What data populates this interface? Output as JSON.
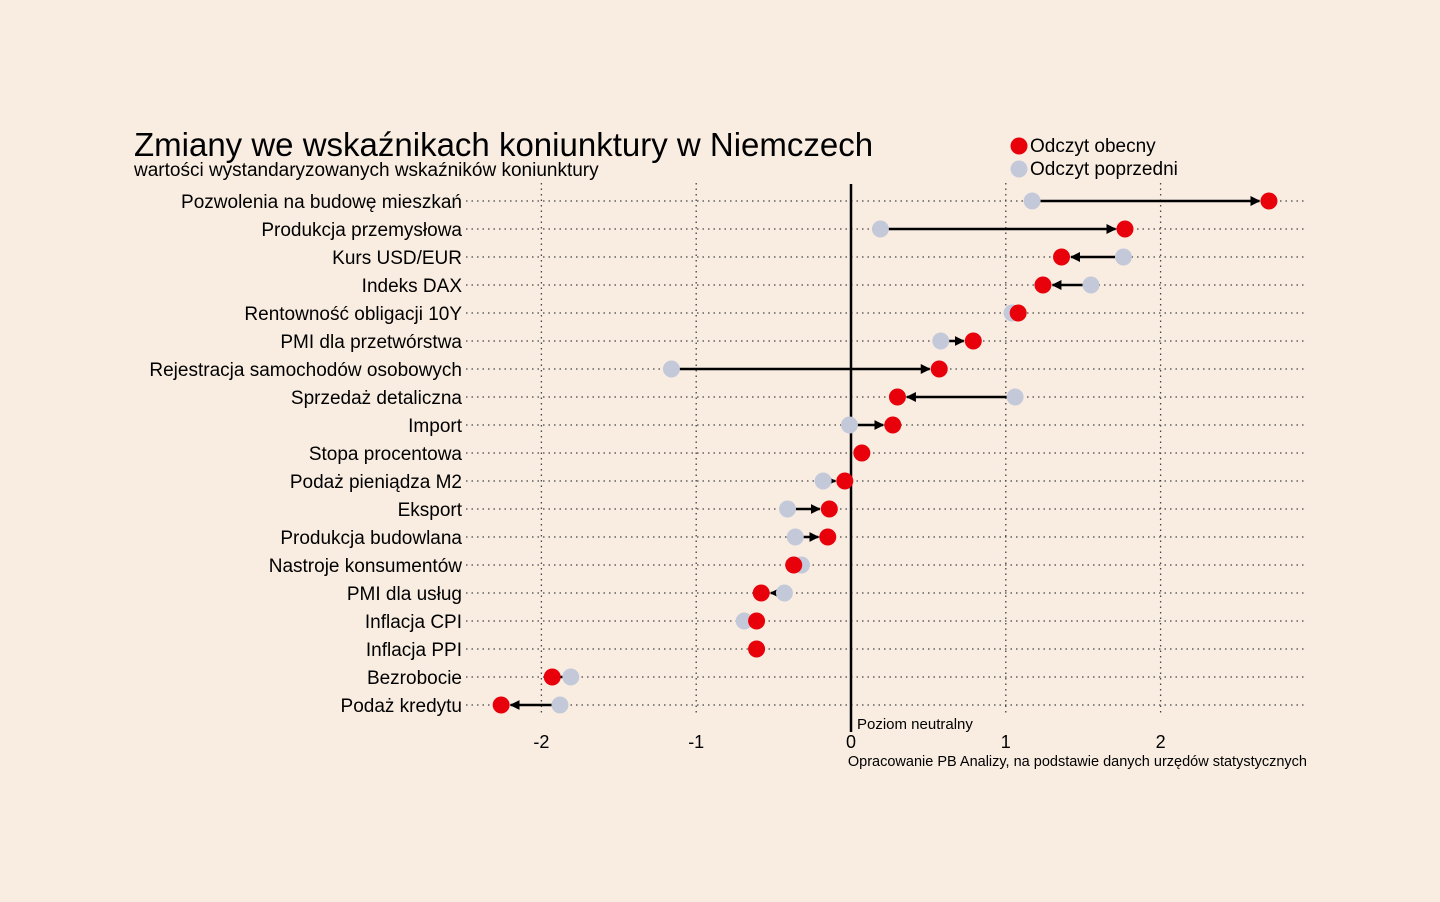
{
  "chart_data": {
    "type": "dumbbell",
    "title": "Zmiany we wskaźnikach koniunktury w Niemczech",
    "subtitle": "wartości wystandaryzowanych wskaźników koniunktury",
    "source": "Opracowanie PB Analizy, na podstawie danych urzędów statystycznych",
    "neutral_label": "Poziom neutralny",
    "legend": [
      {
        "name": "Odczyt obecny",
        "color": "#e8000b"
      },
      {
        "name": "Odczyt poprzedni",
        "color": "#c4c9d9"
      }
    ],
    "legend_position": "top-right",
    "x_ticks": [
      -2,
      -1,
      0,
      1,
      2
    ],
    "x_tick_labels": [
      "-2",
      "-1",
      "0",
      "1",
      "2"
    ],
    "xlim": [
      -2.5,
      3.0
    ],
    "grid": "dotted",
    "categories": [
      "Pozwolenia na budowę mieszkań",
      "Produkcja przemysłowa",
      "Kurs USD/EUR",
      "Indeks DAX",
      "Rentowność obligacji 10Y",
      "PMI dla przetwórstwa",
      "Rejestracja samochodów osobowych",
      "Sprzedaż detaliczna",
      "Import",
      "Stopa procentowa",
      "Podaż pieniądza M2",
      "Eksport",
      "Produkcja budowlana",
      "Nastroje konsumentów",
      "PMI dla usług",
      "Inflacja CPI",
      "Inflacja PPI",
      "Bezrobocie",
      "Podaż kredytu"
    ],
    "series": [
      {
        "name": "Odczyt obecny",
        "values": [
          2.7,
          1.77,
          1.36,
          1.24,
          1.08,
          0.79,
          0.57,
          0.3,
          0.27,
          0.07,
          -0.04,
          -0.14,
          -0.15,
          -0.37,
          -0.58,
          -0.61,
          -0.61,
          -1.93,
          -2.26
        ]
      },
      {
        "name": "Odczyt poprzedni",
        "values": [
          1.17,
          0.19,
          1.76,
          1.55,
          1.04,
          0.58,
          -1.16,
          1.06,
          -0.01,
          0.07,
          -0.18,
          -0.41,
          -0.36,
          -0.32,
          -0.43,
          -0.69,
          -0.61,
          -1.81,
          -1.88
        ]
      }
    ]
  }
}
